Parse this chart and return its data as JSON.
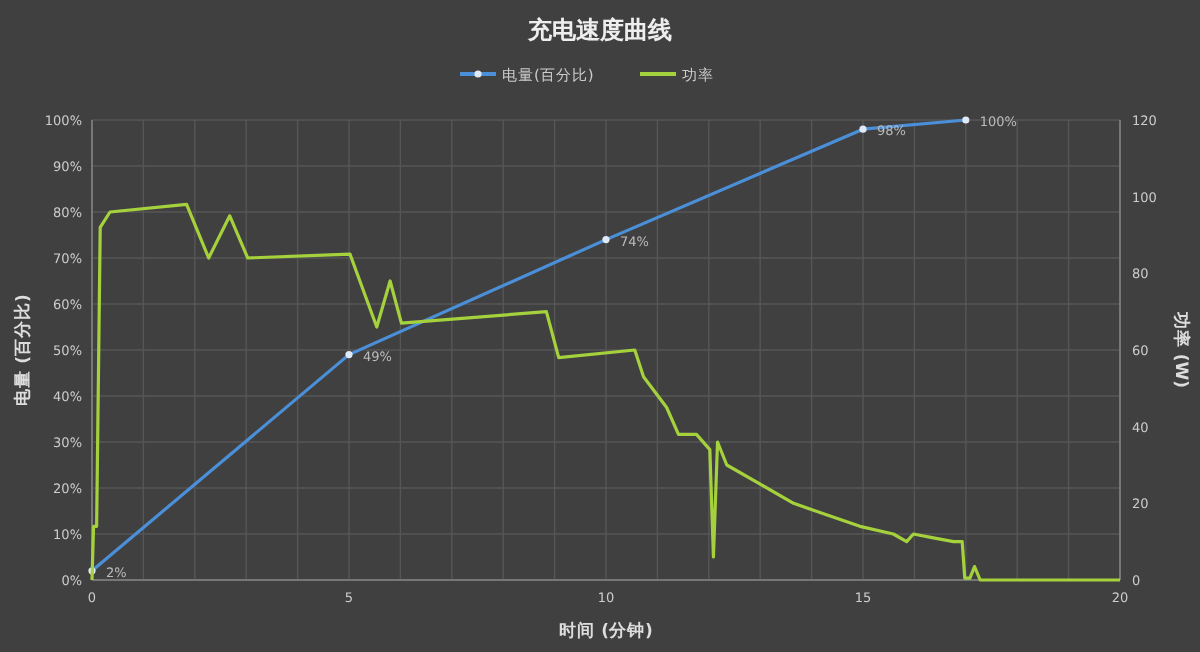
{
  "chart_data": {
    "type": "line",
    "title": "充电速度曲线",
    "xlabel": "时间 (分钟)",
    "ylabel": "电量 (百分比)",
    "y2label": "功率 (W)",
    "legend": "top",
    "grid": true,
    "xlim": [
      0,
      20
    ],
    "xticks": [
      0,
      {
        "value": 1,
        "label": null
      },
      {
        "value": 2,
        "label": null
      },
      {
        "value": 3,
        "label": null
      },
      {
        "value": 4,
        "label": null
      },
      5,
      {
        "value": 6,
        "label": null
      },
      {
        "value": 7,
        "label": null
      },
      {
        "value": 8,
        "label": null
      },
      {
        "value": 9,
        "label": null
      },
      10,
      {
        "value": 11,
        "label": null
      },
      {
        "value": 12,
        "label": null
      },
      {
        "value": 13,
        "label": null
      },
      {
        "value": 14,
        "label": null
      },
      15,
      {
        "value": 16,
        "label": null
      },
      {
        "value": 17,
        "label": null
      },
      {
        "value": 18,
        "label": null
      },
      {
        "value": 19,
        "label": null
      },
      20
    ],
    "ylim": [
      0,
      100
    ],
    "yticks": [
      {
        "value": 0,
        "label": "0%"
      },
      {
        "value": 10,
        "label": "10%"
      },
      {
        "value": 20,
        "label": "20%"
      },
      {
        "value": 30,
        "label": "30%"
      },
      {
        "value": 40,
        "label": "40%"
      },
      {
        "value": 50,
        "label": "50%"
      },
      {
        "value": 60,
        "label": "60%"
      },
      {
        "value": 70,
        "label": "70%"
      },
      {
        "value": 80,
        "label": "80%"
      },
      {
        "value": 90,
        "label": "90%"
      },
      {
        "value": 100,
        "label": "100%"
      }
    ],
    "y2lim": [
      0,
      120
    ],
    "y2ticks": [
      0,
      20,
      40,
      60,
      80,
      100,
      120
    ],
    "series": [
      {
        "name": "电量(百分比)",
        "color": "#4a8fd8",
        "marker": "circle",
        "x": [
          0,
          5,
          10,
          15,
          17
        ],
        "values": [
          2,
          49,
          74,
          98,
          100
        ],
        "value_labels": [
          "2%",
          "49%",
          "74%",
          "98%",
          "100%"
        ]
      },
      {
        "name": "功率",
        "color": "#a4d13c",
        "axis": "y2",
        "marker": "none",
        "x": [
          0,
          0.03,
          0.09,
          0.16,
          0.35,
          1.84,
          2.27,
          2.68,
          3.03,
          5.02,
          5.54,
          5.8,
          6.02,
          8.84,
          9.08,
          10.56,
          10.73,
          11.18,
          11.41,
          11.76,
          12.02,
          12.09,
          12.17,
          12.35,
          13.0,
          13.65,
          14.29,
          14.94,
          15.59,
          15.85,
          15.98,
          16.37,
          16.76,
          16.93,
          16.98,
          17.08,
          17.17,
          17.28,
          20
        ],
        "values": [
          0,
          14,
          14,
          92,
          96,
          98,
          84,
          95,
          84,
          85,
          66,
          78,
          67,
          70,
          58,
          60,
          53,
          45,
          38,
          38,
          34,
          6,
          36,
          30,
          25,
          20,
          17,
          14,
          12,
          10,
          12,
          11,
          10,
          10,
          0.5,
          0.5,
          3.5,
          0,
          0
        ]
      }
    ]
  }
}
